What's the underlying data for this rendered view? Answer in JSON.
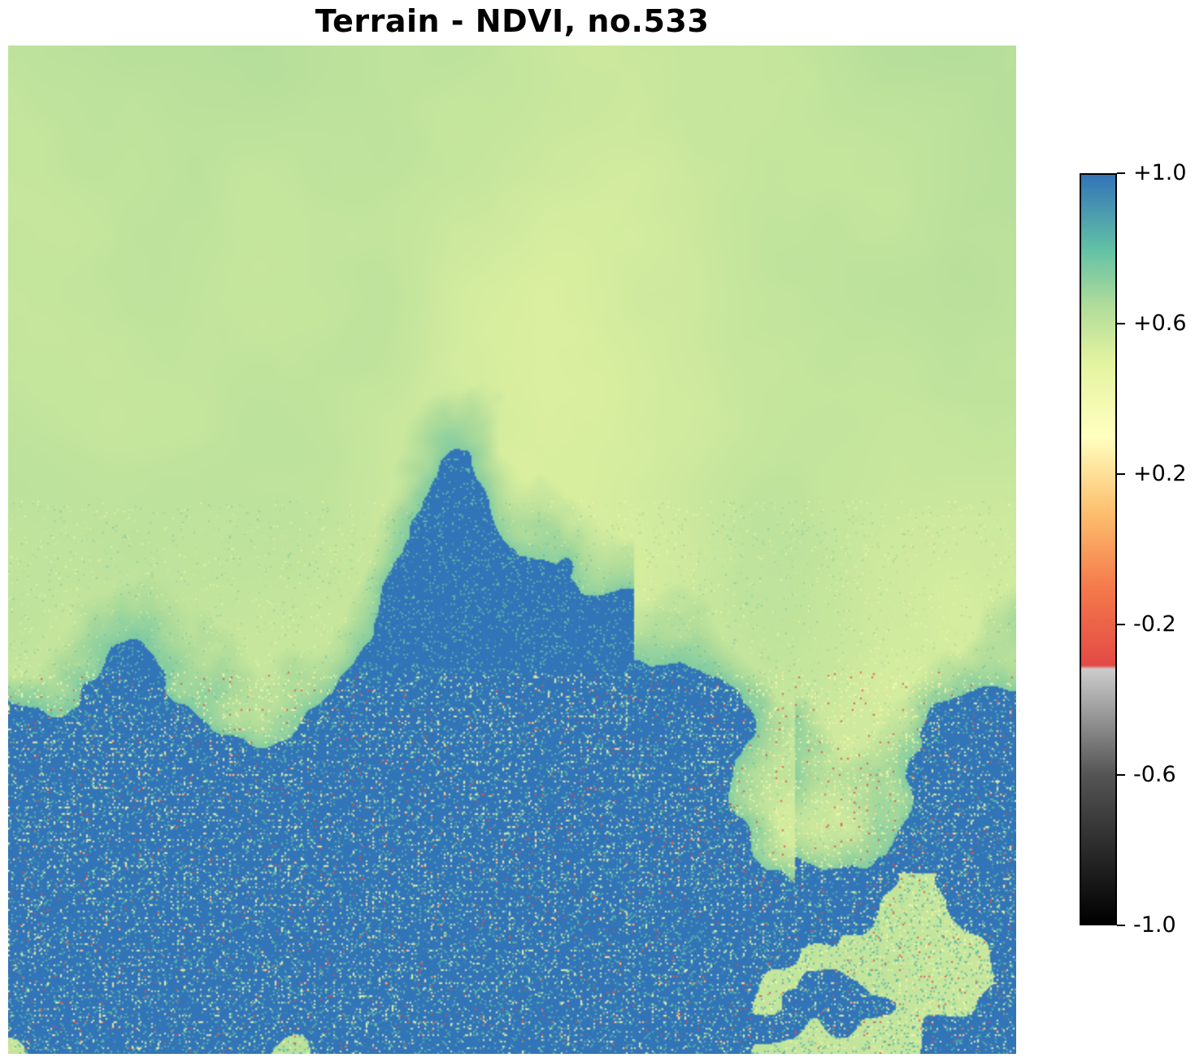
{
  "chart_data": {
    "type": "heatmap",
    "title": "Terrain - NDVI, no.533",
    "variable": "NDVI",
    "vmin": -1.0,
    "vmax": 1.0,
    "colorbar": {
      "ticks": [
        {
          "value": 1.0,
          "label": "+1.0"
        },
        {
          "value": 0.6,
          "label": "+0.6"
        },
        {
          "value": 0.2,
          "label": "+0.2"
        },
        {
          "value": -0.2,
          "label": "-0.2"
        },
        {
          "value": -0.6,
          "label": "-0.6"
        },
        {
          "value": -1.0,
          "label": "-1.0"
        }
      ],
      "stops": [
        {
          "value": -1.0,
          "color": "#000000"
        },
        {
          "value": -0.6,
          "color": "#555555"
        },
        {
          "value": -0.32,
          "color": "#cccccc"
        },
        {
          "value": -0.31,
          "color": "#e34a45"
        },
        {
          "value": -0.1,
          "color": "#f57a4b"
        },
        {
          "value": 0.1,
          "color": "#fdbf6f"
        },
        {
          "value": 0.3,
          "color": "#ffffbf"
        },
        {
          "value": 0.5,
          "color": "#e3f3a0"
        },
        {
          "value": 0.65,
          "color": "#b0dc9a"
        },
        {
          "value": 0.8,
          "color": "#63c1a5"
        },
        {
          "value": 1.0,
          "color": "#3274b8"
        }
      ]
    },
    "field_summary": {
      "upper_region_ndvi": 0.62,
      "middle_region_ndvi": 0.55,
      "dense_vegetation_ndvi": 1.0,
      "sparse_pixels_ndvi": [
        -0.3,
        0.2
      ]
    }
  }
}
